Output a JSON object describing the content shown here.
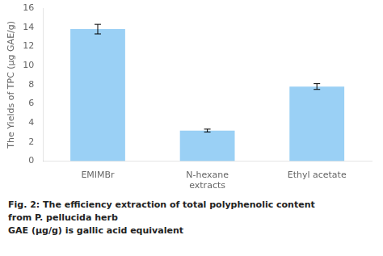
{
  "chart_data": {
    "type": "bar",
    "categories": [
      "EMIMBr",
      "N-hexane\nextracts",
      "Ethyl acetate"
    ],
    "values": [
      13.8,
      3.2,
      7.8
    ],
    "errors": [
      0.5,
      0.15,
      0.3
    ],
    "ylabel": "The Yields of TPC (μg GAE/g)",
    "ylim": [
      0,
      16
    ],
    "yticks": [
      0,
      2,
      4,
      6,
      8,
      10,
      12,
      14,
      16
    ],
    "grid": false,
    "annotations": [
      "Fig. 2: The efficiency extraction of total polyphenolic content",
      "from P. pellucida herb",
      "GAE (μg/g) is gallic acid equivalent"
    ]
  }
}
